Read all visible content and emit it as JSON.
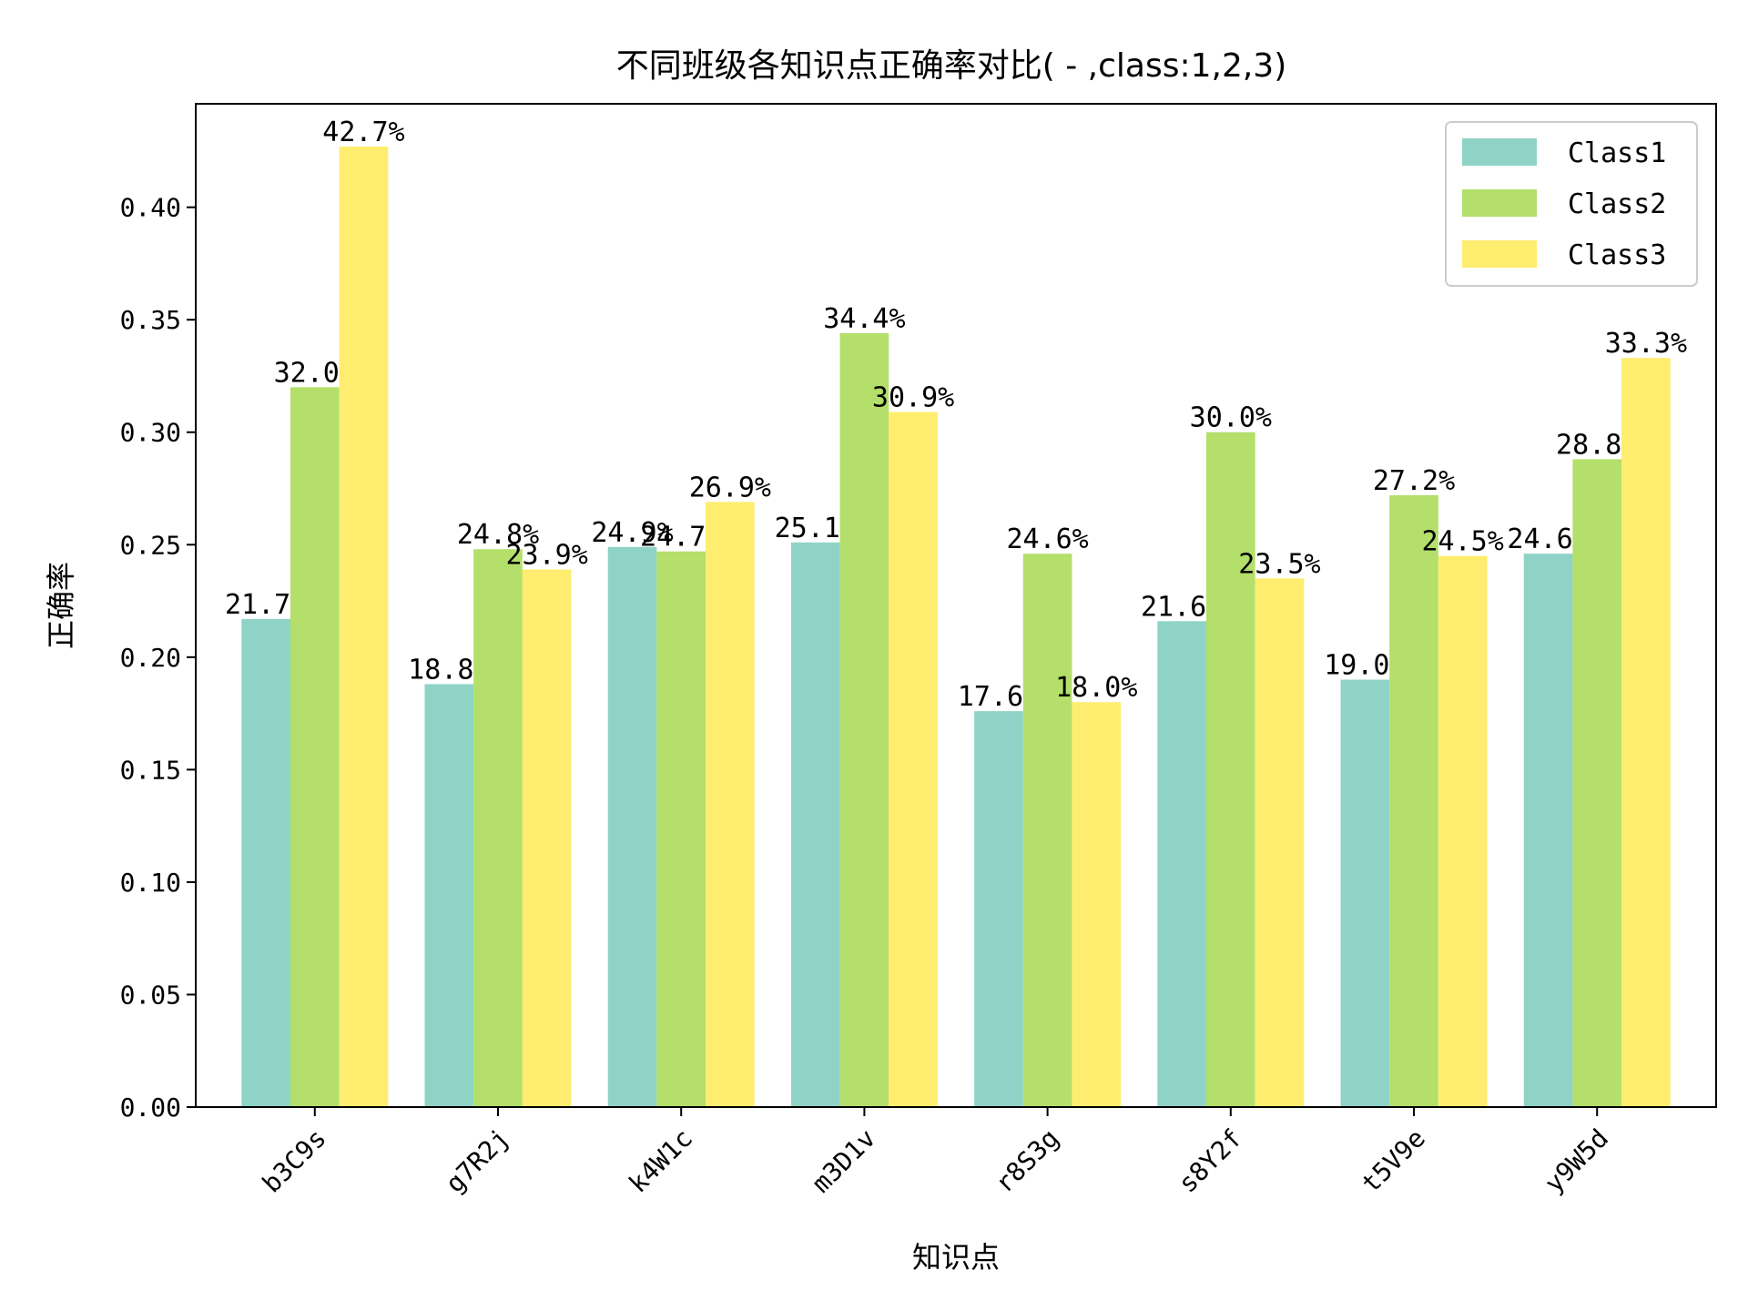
{
  "chart_data": {
    "type": "bar",
    "title": "不同班级各知识点正确率对比( - ,class:1,2,3)",
    "xlabel": "知识点",
    "ylabel": "正确率",
    "ylim": [
      0,
      0.446
    ],
    "yticks": [
      "0.00",
      "0.05",
      "0.10",
      "0.15",
      "0.20",
      "0.25",
      "0.30",
      "0.35",
      "0.40"
    ],
    "categories": [
      "b3C9s",
      "g7R2j",
      "k4W1c",
      "m3D1v",
      "r8S3g",
      "s8Y2f",
      "t5V9e",
      "y9W5d"
    ],
    "legend_position": "top-right",
    "grid": false,
    "series": [
      {
        "name": "Class1",
        "color": "#8fd3c7",
        "values": [
          0.217,
          0.188,
          0.249,
          0.251,
          0.176,
          0.216,
          0.19,
          0.246
        ],
        "labels": [
          "21.7%",
          "18.8%",
          "24.9%",
          "25.1%",
          "17.6%",
          "21.6%",
          "19.0%",
          "24.6%"
        ]
      },
      {
        "name": "Class2",
        "color": "#b3df6a",
        "values": [
          0.32,
          0.248,
          0.247,
          0.344,
          0.246,
          0.3,
          0.272,
          0.288
        ],
        "labels": [
          "32.0%",
          "24.8%",
          "24.7%",
          "34.4%",
          "24.6%",
          "30.0%",
          "27.2%",
          "28.8%"
        ]
      },
      {
        "name": "Class3",
        "color": "#ffed6f",
        "values": [
          0.427,
          0.239,
          0.269,
          0.309,
          0.18,
          0.235,
          0.245,
          0.333
        ],
        "labels": [
          "42.7%",
          "23.9%",
          "26.9%",
          "30.9%",
          "18.0%",
          "23.5%",
          "24.5%",
          "33.3%"
        ]
      }
    ]
  }
}
